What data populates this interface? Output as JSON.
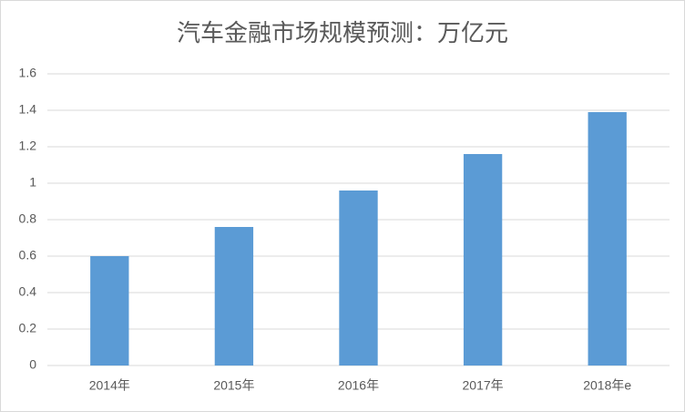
{
  "chart_data": {
    "type": "bar",
    "title": "汽车金融市场规模预测：万亿元",
    "categories": [
      "2014年",
      "2015年",
      "2016年",
      "2017年",
      "2018年e"
    ],
    "values": [
      0.6,
      0.76,
      0.96,
      1.16,
      1.39
    ],
    "color": "#5b9bd5",
    "ylim": [
      0,
      1.6
    ],
    "yticks": [
      0,
      0.2,
      0.4,
      0.6,
      0.8,
      1,
      1.2,
      1.4,
      1.6
    ],
    "grid": true
  }
}
